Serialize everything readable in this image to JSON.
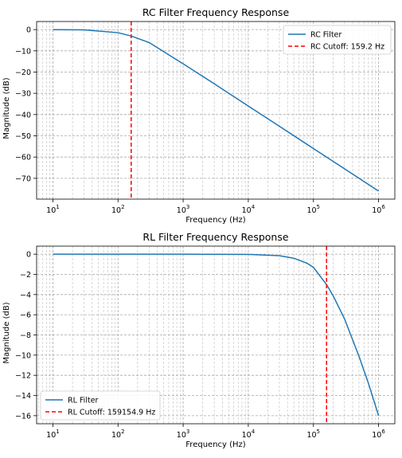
{
  "chart_data": [
    {
      "type": "line",
      "title": "RC Filter Frequency Response",
      "xlabel": "Frequency (Hz)",
      "ylabel": "Magnitude (dB)",
      "xscale": "log",
      "xlim": [
        10,
        1000000
      ],
      "ylim": [
        -76,
        0
      ],
      "xticks": [
        {
          "value": 10,
          "base": "10",
          "exp": "1"
        },
        {
          "value": 100,
          "base": "10",
          "exp": "2"
        },
        {
          "value": 1000,
          "base": "10",
          "exp": "3"
        },
        {
          "value": 10000,
          "base": "10",
          "exp": "4"
        },
        {
          "value": 100000,
          "base": "10",
          "exp": "5"
        },
        {
          "value": 1000000,
          "base": "10",
          "exp": "6"
        }
      ],
      "yticks": [
        0,
        -10,
        -20,
        -30,
        -40,
        -50,
        -60,
        -70
      ],
      "ytick_labels": [
        "0",
        "−10",
        "−20",
        "−30",
        "−40",
        "−50",
        "−60",
        "−70"
      ],
      "grid": true,
      "legend_position": "upper right",
      "series": [
        {
          "name": "RC Filter",
          "color": "#1f77b4",
          "style": "solid",
          "x": [
            10,
            30,
            100,
            159.2,
            300,
            1000,
            3000,
            10000,
            30000,
            100000,
            300000,
            1000000
          ],
          "y": [
            -0.02,
            -0.15,
            -1.47,
            -3.01,
            -6.1,
            -16.1,
            -25.5,
            -36.0,
            -45.5,
            -56.0,
            -65.5,
            -76.0
          ]
        },
        {
          "name": "RC Cutoff: 159.2 Hz",
          "color": "#ff0000",
          "style": "dashed",
          "vline_x": 159.2
        }
      ]
    },
    {
      "type": "line",
      "title": "RL Filter Frequency Response",
      "xlabel": "Frequency (Hz)",
      "ylabel": "Magnitude (dB)",
      "xscale": "log",
      "xlim": [
        10,
        1000000
      ],
      "ylim": [
        -16,
        0
      ],
      "xticks": [
        {
          "value": 10,
          "base": "10",
          "exp": "1"
        },
        {
          "value": 100,
          "base": "10",
          "exp": "2"
        },
        {
          "value": 1000,
          "base": "10",
          "exp": "3"
        },
        {
          "value": 10000,
          "base": "10",
          "exp": "4"
        },
        {
          "value": 100000,
          "base": "10",
          "exp": "5"
        },
        {
          "value": 1000000,
          "base": "10",
          "exp": "6"
        }
      ],
      "yticks": [
        0,
        -2,
        -4,
        -6,
        -8,
        -10,
        -12,
        -14,
        -16
      ],
      "ytick_labels": [
        "0",
        "−2",
        "−4",
        "−6",
        "−8",
        "−10",
        "−12",
        "−14",
        "−16"
      ],
      "grid": true,
      "legend_position": "lower left",
      "series": [
        {
          "name": "RL Filter",
          "color": "#1f77b4",
          "style": "solid",
          "x": [
            10,
            1000,
            10000,
            30000,
            50000,
            80000,
            100000,
            159154.9,
            200000,
            300000,
            500000,
            700000,
            1000000
          ],
          "y": [
            0,
            0,
            -0.02,
            -0.15,
            -0.4,
            -0.9,
            -1.3,
            -3.01,
            -4.1,
            -6.4,
            -10.1,
            -12.8,
            -16.0
          ]
        },
        {
          "name": "RL Cutoff: 159154.9 Hz",
          "color": "#ff0000",
          "style": "dashed",
          "vline_x": 159154.9
        }
      ]
    }
  ]
}
